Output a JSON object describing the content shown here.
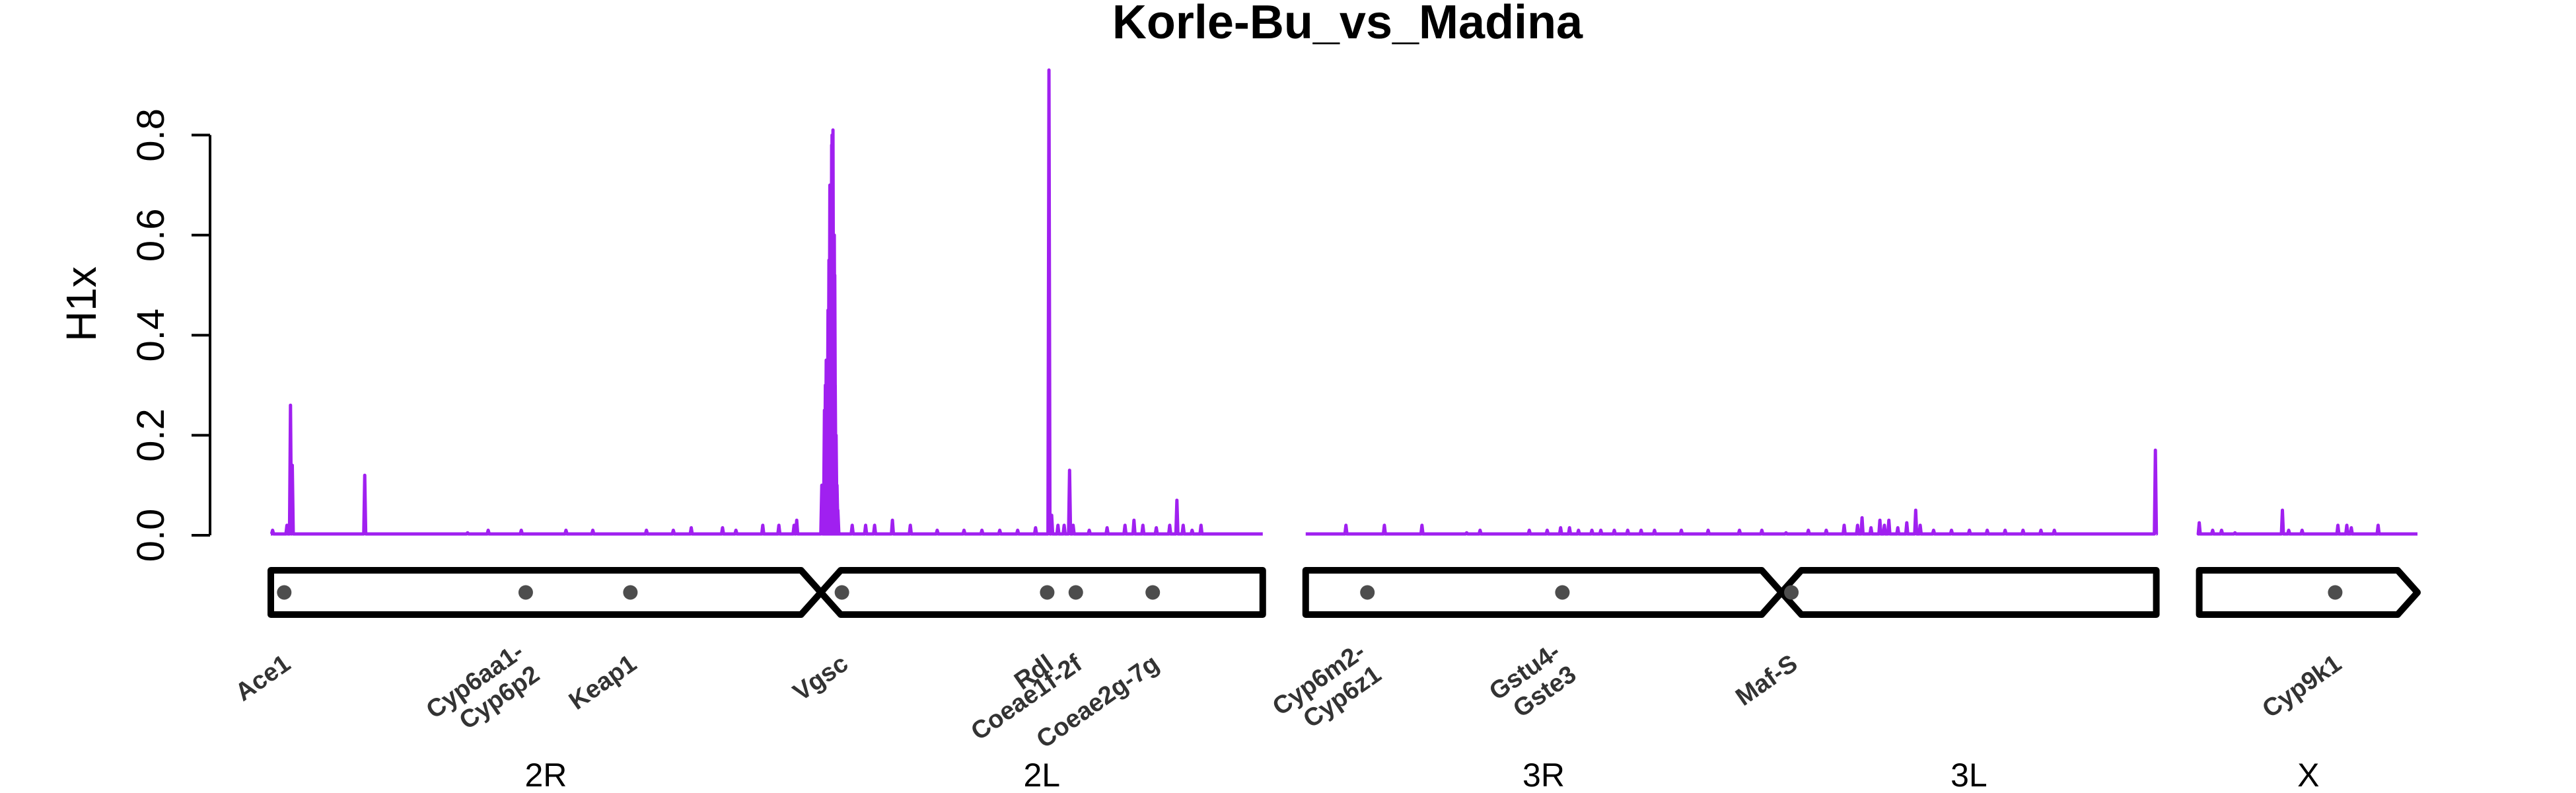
{
  "chart_data": {
    "type": "line",
    "title": "Korle-Bu_vs_Madina",
    "ylabel": "H1x",
    "ylim": [
      0,
      0.93
    ],
    "yticks": [
      "0.0",
      "0.2",
      "0.4",
      "0.6",
      "0.8"
    ],
    "grid": false,
    "color": "#a020f0",
    "chromosomes": [
      {
        "name": "2R",
        "length": 61.5
      },
      {
        "name": "2L",
        "length": 49.4
      },
      {
        "name": "3R",
        "length": 53.2
      },
      {
        "name": "3L",
        "length": 41.9
      },
      {
        "name": "X",
        "length": 24.4
      }
    ],
    "series": [
      {
        "chrom": "2R",
        "peaks": [
          [
            0.2,
            0.01
          ],
          [
            1.8,
            0.02
          ],
          [
            2.2,
            0.26
          ],
          [
            2.4,
            0.14
          ],
          [
            10.5,
            0.12
          ],
          [
            22,
            0.005
          ],
          [
            24.3,
            0.01
          ],
          [
            28,
            0.01
          ],
          [
            33,
            0.01
          ],
          [
            36,
            0.01
          ],
          [
            42,
            0.01
          ],
          [
            45,
            0.01
          ],
          [
            47,
            0.015
          ],
          [
            50.5,
            0.015
          ],
          [
            52,
            0.01
          ],
          [
            55,
            0.02
          ],
          [
            56.8,
            0.02
          ],
          [
            58.5,
            0.02
          ],
          [
            58.8,
            0.03
          ]
        ]
      },
      {
        "chrom": "2L",
        "peaks": [
          [
            0.1,
            0.1
          ],
          [
            0.3,
            0.1
          ],
          [
            0.4,
            0.25
          ],
          [
            0.5,
            0.3
          ],
          [
            0.6,
            0.35
          ],
          [
            0.7,
            0.28
          ],
          [
            0.8,
            0.45
          ],
          [
            0.9,
            0.55
          ],
          [
            1.0,
            0.7
          ],
          [
            1.1,
            0.62
          ],
          [
            1.2,
            0.78
          ],
          [
            1.25,
            0.8
          ],
          [
            1.3,
            0.76
          ],
          [
            1.35,
            0.81
          ],
          [
            1.4,
            0.5
          ],
          [
            1.5,
            0.6
          ],
          [
            1.55,
            0.52
          ],
          [
            1.6,
            0.3
          ],
          [
            1.7,
            0.2
          ],
          [
            1.8,
            0.1
          ],
          [
            1.9,
            0.05
          ],
          [
            3.5,
            0.02
          ],
          [
            5,
            0.02
          ],
          [
            6,
            0.02
          ],
          [
            8,
            0.03
          ],
          [
            10,
            0.02
          ],
          [
            13,
            0.01
          ],
          [
            16,
            0.01
          ],
          [
            18,
            0.01
          ],
          [
            20,
            0.01
          ],
          [
            22,
            0.01
          ],
          [
            24,
            0.015
          ],
          [
            25.5,
            0.93
          ],
          [
            25.8,
            0.04
          ],
          [
            26.5,
            0.02
          ],
          [
            27.2,
            0.02
          ],
          [
            27.8,
            0.13
          ],
          [
            28.2,
            0.02
          ],
          [
            30,
            0.01
          ],
          [
            32,
            0.015
          ],
          [
            34,
            0.02
          ],
          [
            35,
            0.03
          ],
          [
            36,
            0.02
          ],
          [
            37.5,
            0.015
          ],
          [
            39,
            0.02
          ],
          [
            39.8,
            0.07
          ],
          [
            40.5,
            0.02
          ],
          [
            41.5,
            0.01
          ],
          [
            42.5,
            0.02
          ]
        ]
      },
      {
        "chrom": "3R",
        "peaks": [
          [
            4.5,
            0.02
          ],
          [
            8.8,
            0.02
          ],
          [
            13,
            0.02
          ],
          [
            18,
            0.005
          ],
          [
            19.5,
            0.01
          ],
          [
            25,
            0.01
          ],
          [
            27,
            0.01
          ],
          [
            28.5,
            0.015
          ],
          [
            29.5,
            0.015
          ],
          [
            30.5,
            0.01
          ],
          [
            32,
            0.01
          ],
          [
            33,
            0.01
          ],
          [
            34.5,
            0.01
          ],
          [
            36,
            0.01
          ],
          [
            37.5,
            0.01
          ],
          [
            39,
            0.01
          ],
          [
            42,
            0.01
          ],
          [
            45,
            0.01
          ],
          [
            48.5,
            0.01
          ],
          [
            51,
            0.01
          ]
        ]
      },
      {
        "chrom": "3L",
        "peaks": [
          [
            0.5,
            0.005
          ],
          [
            3,
            0.01
          ],
          [
            5,
            0.01
          ],
          [
            7,
            0.02
          ],
          [
            8.5,
            0.02
          ],
          [
            9,
            0.035
          ],
          [
            10,
            0.015
          ],
          [
            11,
            0.03
          ],
          [
            11.5,
            0.02
          ],
          [
            12,
            0.03
          ],
          [
            13,
            0.015
          ],
          [
            14,
            0.025
          ],
          [
            15,
            0.05
          ],
          [
            15.5,
            0.02
          ],
          [
            17,
            0.01
          ],
          [
            19,
            0.01
          ],
          [
            21,
            0.01
          ],
          [
            23,
            0.01
          ],
          [
            25,
            0.01
          ],
          [
            27,
            0.01
          ],
          [
            29,
            0.01
          ],
          [
            30.5,
            0.01
          ],
          [
            41.8,
            0.17
          ]
        ]
      },
      {
        "chrom": "X",
        "peaks": [
          [
            0,
            0.025
          ],
          [
            1.5,
            0.01
          ],
          [
            2.5,
            0.01
          ],
          [
            4,
            0.005
          ],
          [
            9.3,
            0.05
          ],
          [
            10,
            0.01
          ],
          [
            11.5,
            0.01
          ],
          [
            15.5,
            0.02
          ],
          [
            16.5,
            0.02
          ],
          [
            17,
            0.015
          ],
          [
            20,
            0.02
          ]
        ]
      }
    ],
    "genes": [
      {
        "label": [
          "Ace1"
        ],
        "chrom": "2R",
        "pos": 1.5
      },
      {
        "label": [
          "Cyp6aa1-",
          "Cyp6p2"
        ],
        "chrom": "2R",
        "pos": 28.5
      },
      {
        "label": [
          "Keap1"
        ],
        "chrom": "2R",
        "pos": 40.2
      },
      {
        "label": [
          "Vgsc"
        ],
        "chrom": "2L",
        "pos": 2.35
      },
      {
        "label": [
          "Rdl"
        ],
        "chrom": "2L",
        "pos": 25.3
      },
      {
        "label": [
          "Coeae1f-2f"
        ],
        "chrom": "2L",
        "pos": 28.5
      },
      {
        "label": [
          "Coeae2g-7g"
        ],
        "chrom": "2L",
        "pos": 37.1
      },
      {
        "label": [
          "Cyp6m2-",
          "Cyp6z1"
        ],
        "chrom": "3R",
        "pos": 6.9
      },
      {
        "label": [
          "Gstu4-",
          "Gste3"
        ],
        "chrom": "3R",
        "pos": 28.7
      },
      {
        "label": [
          "Maf-S"
        ],
        "chrom": "3L",
        "pos": 1.1
      },
      {
        "label": [
          "Cyp9k1"
        ],
        "chrom": "X",
        "pos": 15.2
      }
    ]
  }
}
